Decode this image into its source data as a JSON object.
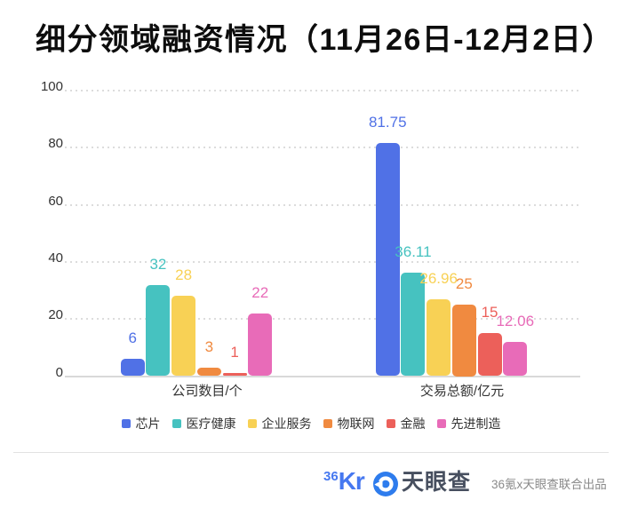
{
  "title": "细分领域融资情况（11月26日-12月2日）",
  "chart_data": {
    "type": "bar",
    "categories": [
      "公司数目/个",
      "交易总额/亿元"
    ],
    "series": [
      {
        "name": "芯片",
        "key": "chip",
        "color": "#5071e6",
        "values": [
          6,
          81.75
        ]
      },
      {
        "name": "医疗健康",
        "key": "healthcare",
        "color": "#46c2c0",
        "values": [
          32,
          36.11
        ]
      },
      {
        "name": "企业服务",
        "key": "enterprise-services",
        "color": "#f8d155",
        "values": [
          28,
          26.96
        ]
      },
      {
        "name": "物联网",
        "key": "iot",
        "color": "#f08a40",
        "values": [
          3,
          25
        ]
      },
      {
        "name": "金融",
        "key": "finance",
        "color": "#ec605a",
        "values": [
          1,
          15
        ]
      },
      {
        "name": "先进制造",
        "key": "advanced-manufacturing",
        "color": "#e86bb8",
        "values": [
          22,
          12.06
        ]
      }
    ],
    "ylim": [
      0,
      100
    ],
    "yticks": [
      0,
      20,
      40,
      60,
      80,
      100
    ],
    "grid": "dotted-horizontal",
    "legend_position": "bottom"
  },
  "footer": {
    "logo_36kr_super": "36",
    "logo_36kr_main": "Kr",
    "logo_tianyancha": "天眼查",
    "credit": "36氪x天眼查联合出品",
    "brand_blue": "#4678f0",
    "tyc_icon_blue": "#2e7ced"
  }
}
